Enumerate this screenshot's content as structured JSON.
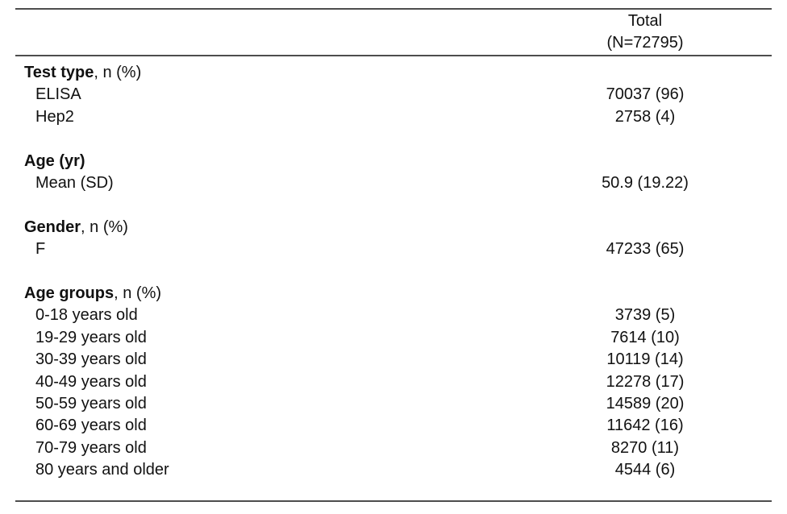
{
  "header": {
    "column_label": "Total",
    "column_sublabel": "(N=72795)"
  },
  "sections": [
    {
      "title_bold": "Test type",
      "title_rest": ", n (%)",
      "rows": [
        {
          "label": "ELISA",
          "value": "70037 (96)"
        },
        {
          "label": "Hep2",
          "value": "2758 (4)"
        }
      ]
    },
    {
      "title_bold": "Age (yr)",
      "title_rest": "",
      "rows": [
        {
          "label": "Mean (SD)",
          "value": "50.9 (19.22)"
        }
      ]
    },
    {
      "title_bold": "Gender",
      "title_rest": ", n (%)",
      "rows": [
        {
          "label": "F",
          "value": "47233 (65)"
        }
      ]
    },
    {
      "title_bold": "Age groups",
      "title_rest": ", n (%)",
      "rows": [
        {
          "label": "0-18 years old",
          "value": "3739 (5)"
        },
        {
          "label": "19-29 years old",
          "value": "7614 (10)"
        },
        {
          "label": "30-39 years old",
          "value": "10119 (14)"
        },
        {
          "label": "40-49 years old",
          "value": "12278 (17)"
        },
        {
          "label": "50-59 years old",
          "value": "14589 (20)"
        },
        {
          "label": "60-69 years old",
          "value": "11642 (16)"
        },
        {
          "label": "70-79 years old",
          "value": "8270 (11)"
        },
        {
          "label": "80 years and older",
          "value": "4544 (6)"
        }
      ]
    }
  ],
  "colors": {
    "background": "#ffffff",
    "text": "#111111",
    "rule": "#4d4d4d"
  }
}
